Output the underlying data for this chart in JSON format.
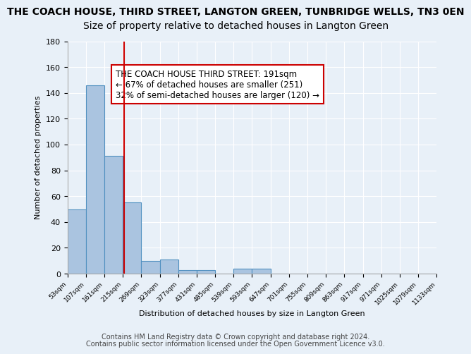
{
  "title": "THE COACH HOUSE, THIRD STREET, LANGTON GREEN, TUNBRIDGE WELLS, TN3 0EN",
  "subtitle": "Size of property relative to detached houses in Langton Green",
  "xlabel": "Distribution of detached houses by size in Langton Green",
  "ylabel": "Number of detached properties",
  "bin_labels": [
    "53sqm",
    "107sqm",
    "161sqm",
    "215sqm",
    "269sqm",
    "323sqm",
    "377sqm",
    "431sqm",
    "485sqm",
    "539sqm",
    "593sqm",
    "647sqm",
    "701sqm",
    "755sqm",
    "809sqm",
    "863sqm",
    "917sqm",
    "971sqm",
    "1025sqm",
    "1079sqm",
    "1133sqm"
  ],
  "bar_values": [
    50,
    146,
    91,
    55,
    10,
    11,
    3,
    3,
    0,
    4,
    4,
    0,
    0,
    0,
    0,
    0,
    0,
    0,
    0,
    0
  ],
  "bar_color": "#aac4e0",
  "bar_edge_color": "#5090c0",
  "background_color": "#e8f0f8",
  "grid_color": "#ffffff",
  "ylim": [
    0,
    180
  ],
  "yticks": [
    0,
    20,
    40,
    60,
    80,
    100,
    120,
    140,
    160,
    180
  ],
  "vline_x": 2.56,
  "vline_color": "#cc0000",
  "annotation_text": "THE COACH HOUSE THIRD STREET: 191sqm\n← 67% of detached houses are smaller (251)\n32% of semi-detached houses are larger (120) →",
  "annotation_box_color": "#ffffff",
  "annotation_box_edge": "#cc0000",
  "footer_line1": "Contains HM Land Registry data © Crown copyright and database right 2024.",
  "footer_line2": "Contains public sector information licensed under the Open Government Licence v3.0.",
  "title_fontsize": 10,
  "subtitle_fontsize": 10,
  "annotation_fontsize": 8.5,
  "footer_fontsize": 7
}
